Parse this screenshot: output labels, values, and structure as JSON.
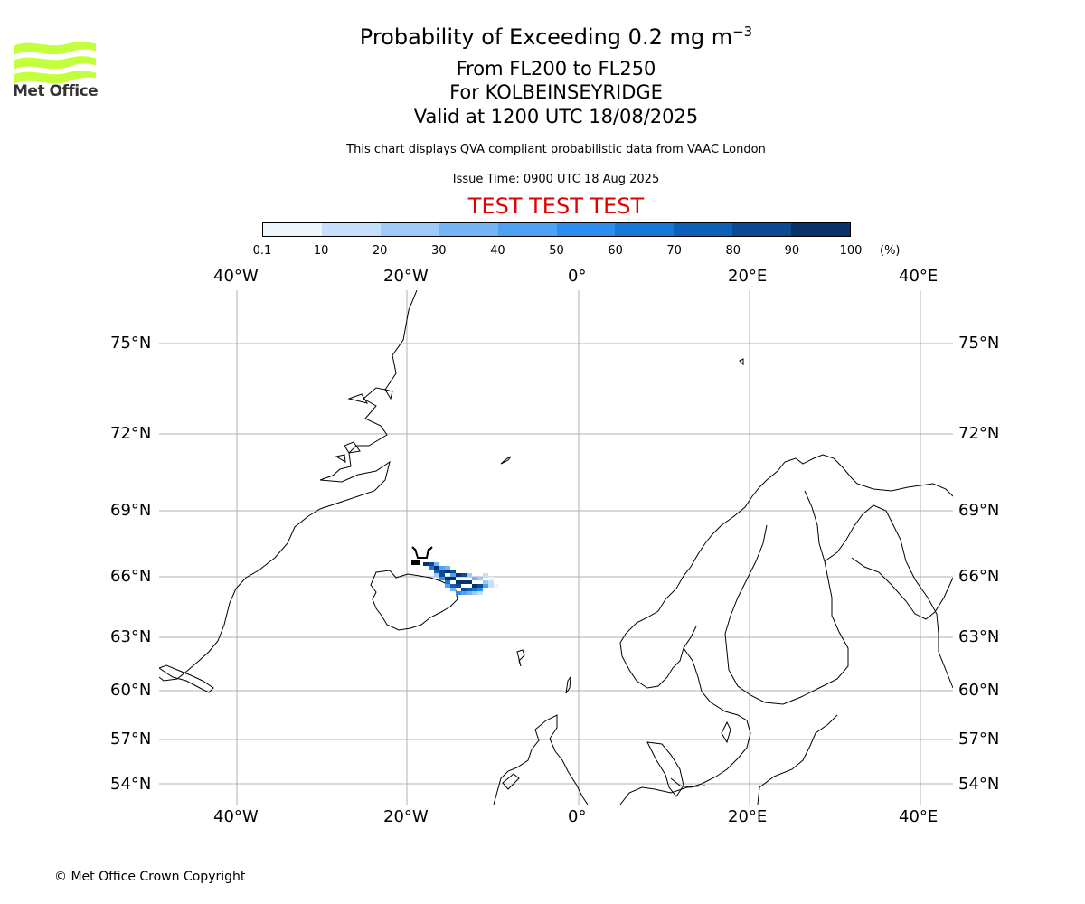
{
  "logo": {
    "text": "Met Office",
    "color": "#c4ff3c"
  },
  "title": {
    "main_prefix": "Probability of Exceeding 0.2 mg m",
    "main_sup": "−3",
    "line2": "From FL200 to FL250",
    "line3": "For KOLBEINSEYRIDGE",
    "line4": "Valid at 1200 UTC 18/08/2025"
  },
  "subtitle": "This chart displays QVA compliant probabilistic data from VAAC London",
  "issue_time": "Issue Time: 0900 UTC 18 Aug 2025",
  "test_banner": "TEST TEST TEST",
  "colorbar": {
    "ticks": [
      "0.1",
      "10",
      "20",
      "30",
      "40",
      "50",
      "60",
      "70",
      "80",
      "90",
      "100"
    ],
    "unit": "(%)",
    "colors": [
      "#eef5fd",
      "#c6e0fb",
      "#9dcaf8",
      "#74b4f5",
      "#4ea1f3",
      "#2a8ef0",
      "#1577d8",
      "#0d60b7",
      "#0a4b93",
      "#08336a"
    ]
  },
  "axes": {
    "lon_labels": [
      "40°W",
      "20°W",
      "0°",
      "20°E",
      "40°E"
    ],
    "lat_labels": [
      "75°N",
      "72°N",
      "69°N",
      "66°N",
      "63°N",
      "60°N",
      "57°N",
      "54°N"
    ],
    "gridline_color": "#b0b0b0"
  },
  "footer": "© Met Office Crown Copyright"
}
